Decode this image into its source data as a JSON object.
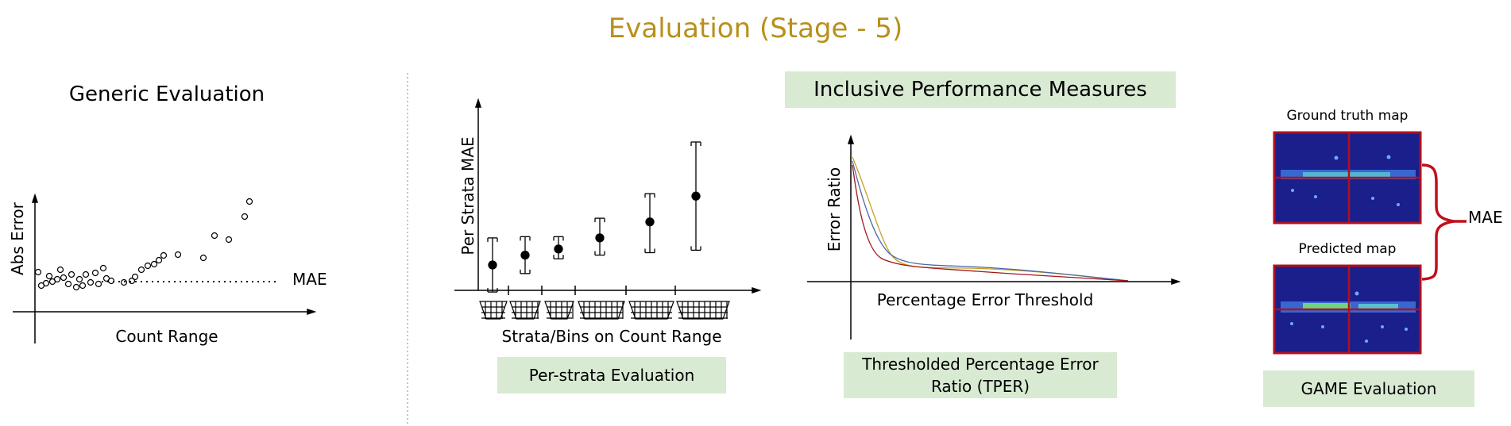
{
  "title": "Evaluation (Stage - 5)",
  "colors": {
    "title": "#b8901a",
    "green_box": "#d9ead3",
    "map_border": "#b01020",
    "map_bg": "#1a1f8c",
    "bracket": "#c0101c",
    "curve_gold": "#c8a020",
    "curve_blue": "#4a6aa8",
    "curve_red": "#a01818"
  },
  "generic": {
    "heading": "Generic Evaluation",
    "ylabel": "Abs  Error",
    "xlabel": "Count Range",
    "mae_label": "MAE"
  },
  "per_strata": {
    "ylabel": "Per Strata MAE",
    "xlabel": "Strata/Bins on Count Range",
    "caption": "Per-strata Evaluation",
    "points": [
      {
        "mean": 0.4,
        "low": 0.18,
        "high": 0.62
      },
      {
        "mean": 0.48,
        "low": 0.33,
        "high": 0.63
      },
      {
        "mean": 0.53,
        "low": 0.45,
        "high": 0.63
      },
      {
        "mean": 0.62,
        "low": 0.48,
        "high": 0.78
      },
      {
        "mean": 0.75,
        "low": 0.5,
        "high": 0.98
      },
      {
        "mean": 0.96,
        "low": 0.52,
        "high": 1.4
      }
    ]
  },
  "inclusive": {
    "heading": "Inclusive Performance Measures",
    "ylabel": "Error Ratio",
    "xlabel": "Percentage Error Threshold",
    "caption": "Thresholded Percentage Error Ratio (TPER)"
  },
  "game": {
    "gt_label": "Ground truth map",
    "pred_label": "Predicted  map",
    "mae_label": "MAE",
    "caption": "GAME Evaluation"
  }
}
